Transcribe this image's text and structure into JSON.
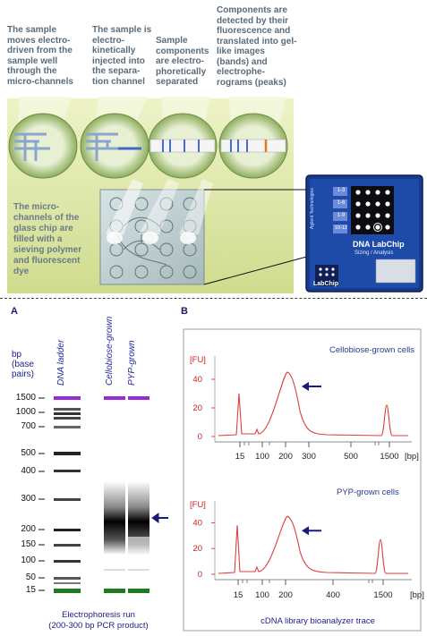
{
  "top_panel": {
    "steps": [
      {
        "text": "The sample moves electro-driven from the sample well through the micro-channels"
      },
      {
        "text": "The sample is electro-kinetically injected into the separa-tion channel"
      },
      {
        "text": "Sample components are electro-phoretically separated"
      },
      {
        "text": "Components are detected by their fluorescence and translated into gel-like images (bands) and electrophe-rograms (peaks)"
      }
    ],
    "chip_note": "The micro-channels of the glass chip are filled with a sieving polymer and fluorescent dye",
    "cartridge": {
      "brand": "Agilent Technologies",
      "product": "DNA LabChip",
      "subtitle": "Sizing / Analysis",
      "logo": "LabChip",
      "well_labels": [
        "1-3",
        "1-6",
        "1-9",
        "10-12"
      ]
    }
  },
  "panel_a": {
    "label": "A",
    "bp_title": "bp (base pairs)",
    "lanes": [
      {
        "name": "DNA ladder"
      },
      {
        "name": "Cellobiose-grown"
      },
      {
        "name": "PYP-grown"
      }
    ],
    "ticks": [
      "1500",
      "1000",
      "700",
      "500",
      "400",
      "300",
      "200",
      "150",
      "100",
      "50",
      "15"
    ],
    "caption_line1": "Electrophoresis  run",
    "caption_line2": "(200-300 bp PCR product)",
    "colors": {
      "upper_marker": "#9a2ad8",
      "lower_marker": "#1e7a1e",
      "arrow": "#1a1a7a"
    }
  },
  "panel_b": {
    "label": "B",
    "caption": "cDNA library bioanalyzer trace",
    "chart_data": [
      {
        "type": "line",
        "title": "Cellobiose-grown cells",
        "ylabel": "[FU]",
        "xlabel": "[bp]",
        "y_ticks": [
          0,
          20,
          40
        ],
        "ylim": [
          0,
          50
        ],
        "x_tick_labels": [
          "15",
          "100",
          "200",
          "300",
          "500",
          "1500"
        ],
        "peaks": [
          {
            "bp": 15,
            "fu": 30
          },
          {
            "bp": 230,
            "fu": 45
          },
          {
            "bp": 1500,
            "fu": 22
          }
        ],
        "color": "#d94040"
      },
      {
        "type": "line",
        "title": "PYP-grown cells",
        "ylabel": "[FU]",
        "xlabel": "[bp]",
        "y_ticks": [
          0,
          20,
          40
        ],
        "ylim": [
          0,
          50
        ],
        "x_tick_labels": [
          "15",
          "100",
          "200",
          "400",
          "1500"
        ],
        "peaks": [
          {
            "bp": 15,
            "fu": 38
          },
          {
            "bp": 220,
            "fu": 45
          },
          {
            "bp": 1500,
            "fu": 27
          }
        ],
        "color": "#d94040"
      }
    ]
  }
}
